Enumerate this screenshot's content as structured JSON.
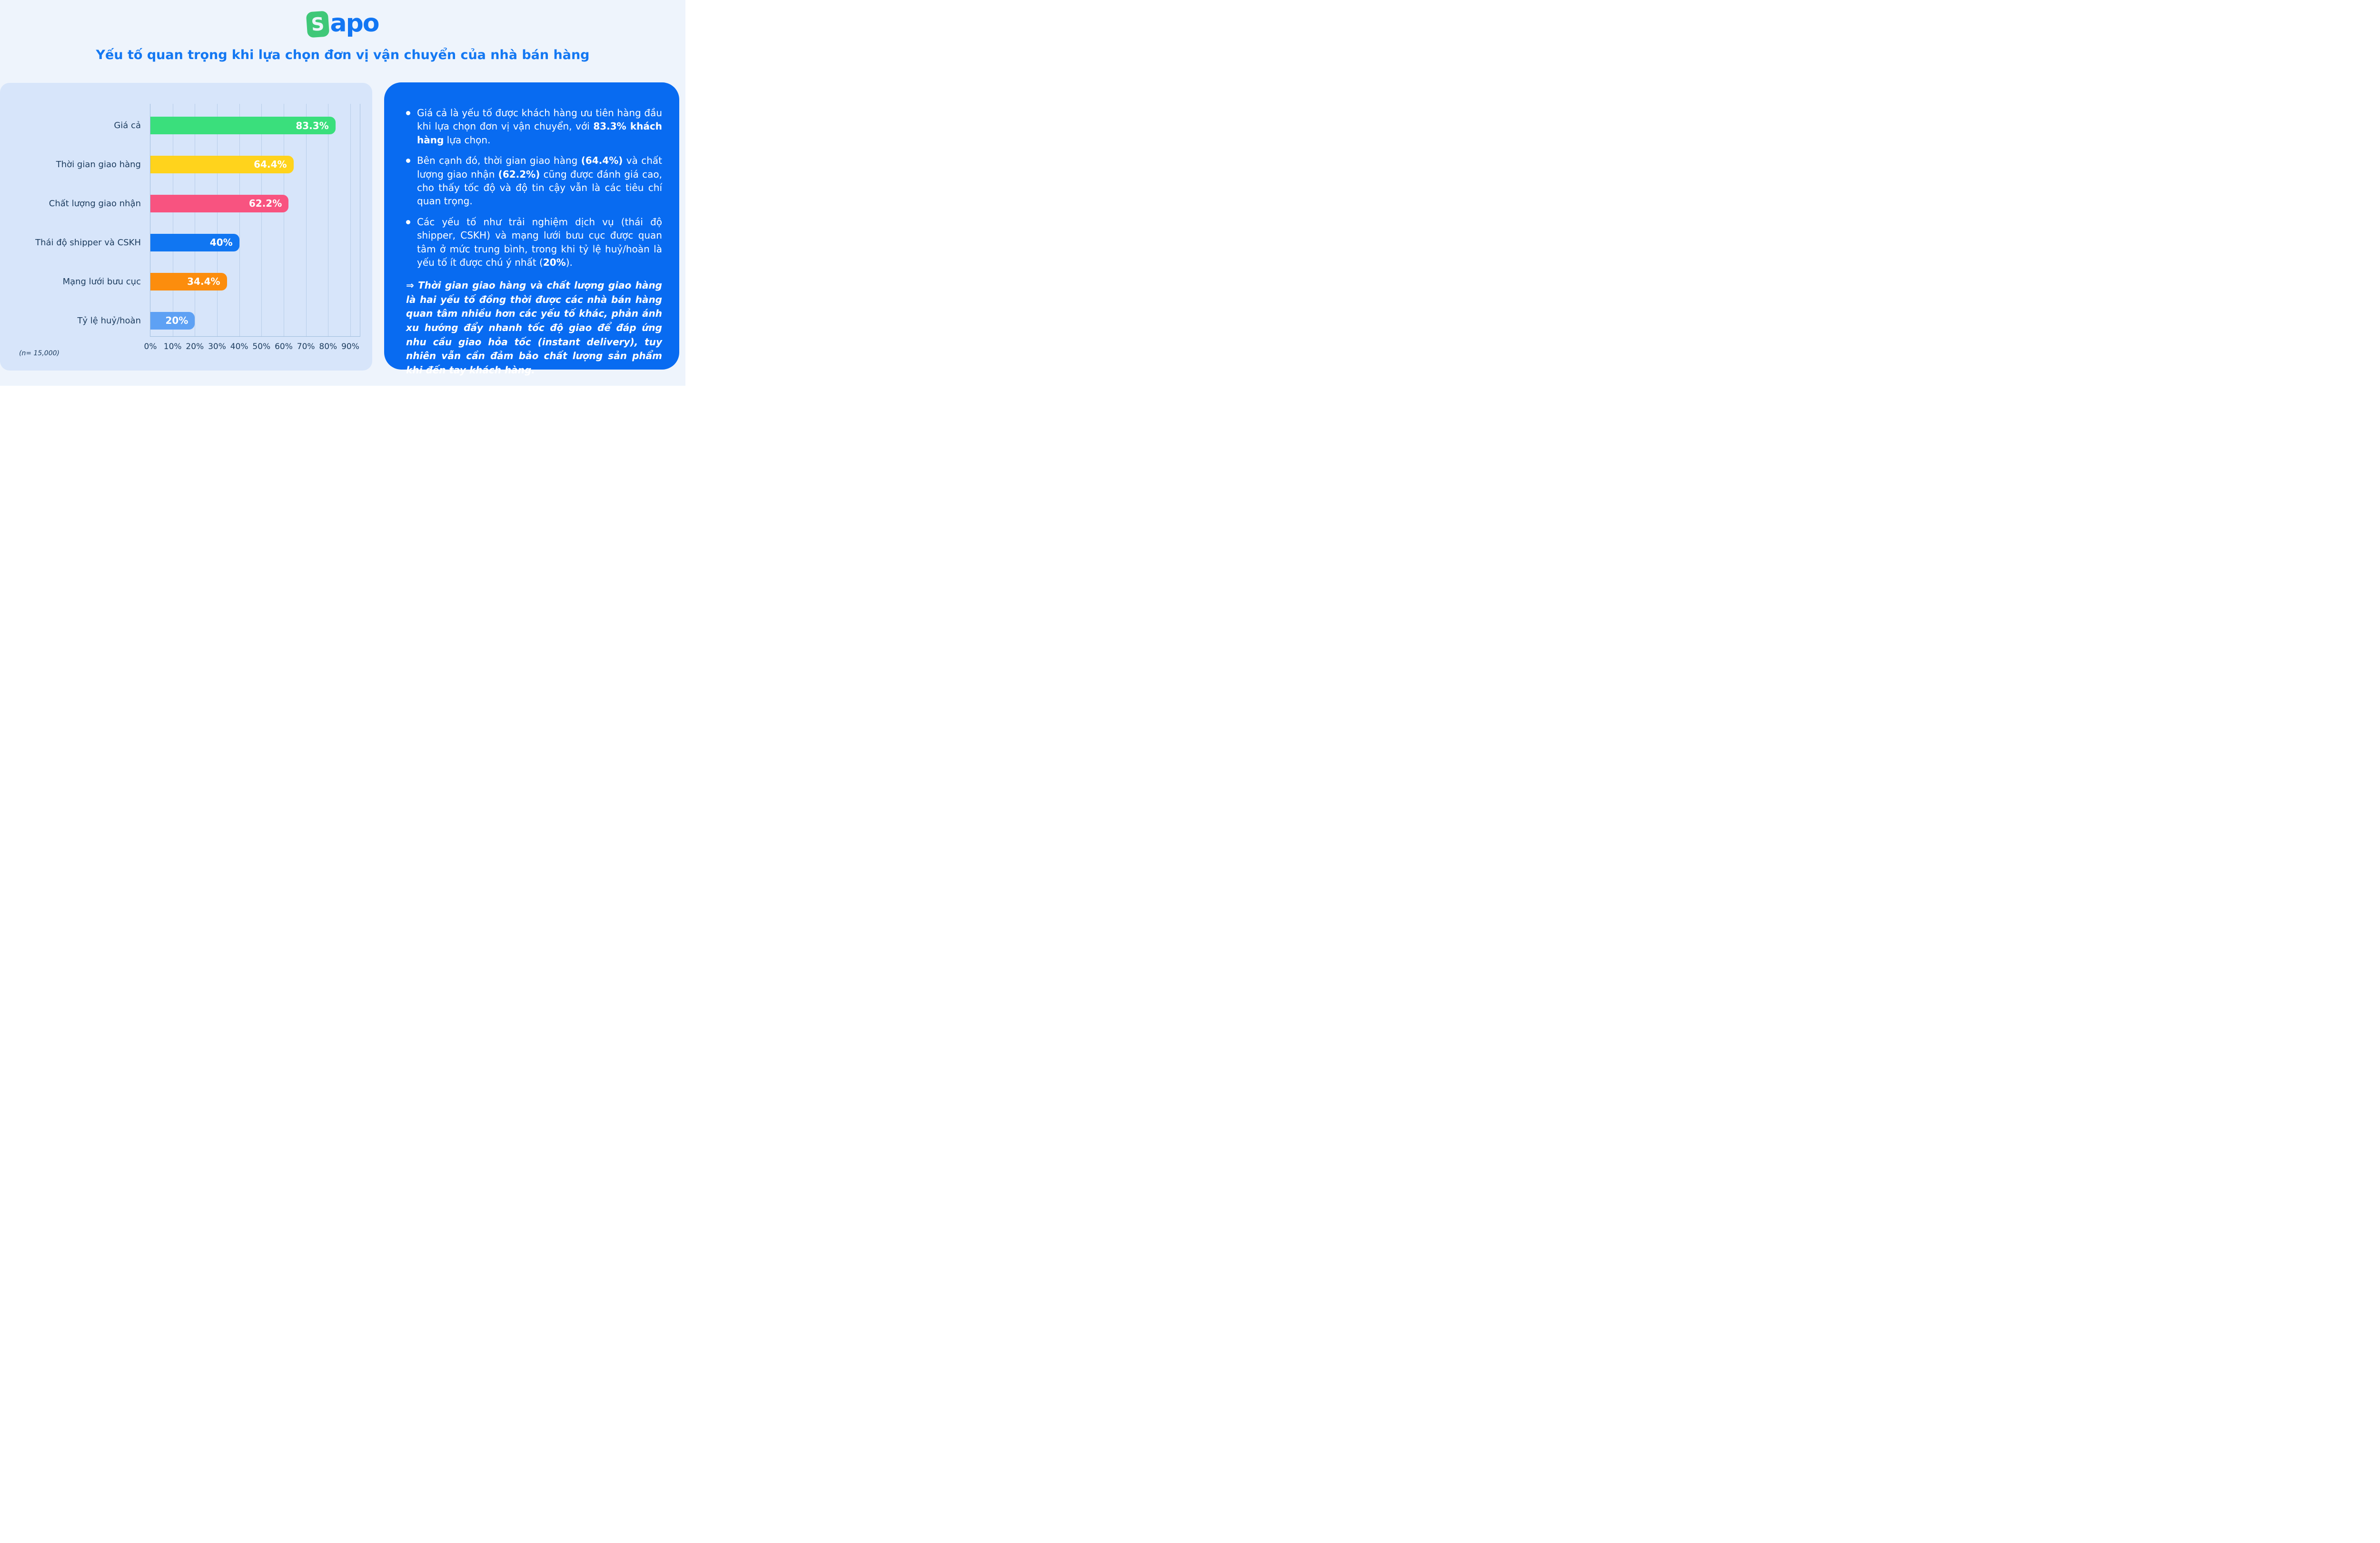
{
  "logo": {
    "mark_letter": "S",
    "text_rest": "apo",
    "brand": "Sapo"
  },
  "title": "Yếu tố quan trọng khi lựa chọn đơn vị vận chuyển của nhà bán hàng",
  "chart_data": {
    "type": "bar",
    "orientation": "horizontal",
    "categories": [
      "Giá cả",
      "Thời gian giao hàng",
      "Chất lượng giao nhận",
      "Thái độ shipper và CSKH",
      "Mạng lưới bưu cục",
      "Tỷ lệ huỷ/hoàn"
    ],
    "values": [
      83.3,
      64.4,
      62.2,
      40,
      34.4,
      20
    ],
    "value_labels": [
      "83.3%",
      "64.4%",
      "62.2%",
      "40%",
      "34.4%",
      "20%"
    ],
    "bar_colors": [
      "#3ADF7C",
      "#FFD31C",
      "#F85380",
      "#1076F2",
      "#FC8D0D",
      "#5EA1F4"
    ],
    "x_ticks": [
      "0%",
      "10%",
      "20%",
      "30%",
      "40%",
      "50%",
      "60%",
      "70%",
      "80%",
      "90%"
    ],
    "xlim": [
      0,
      90
    ],
    "grid": true,
    "value_label_position": "inside-end",
    "note": "(n= 15,000)",
    "title": "Yếu tố quan trọng khi lựa chọn đơn vị vận chuyển của nhà bán hàng"
  },
  "insights": {
    "bullets": [
      {
        "segments": [
          {
            "text": "Giá cả là yếu tố được khách hàng ưu tiên hàng đầu khi lựa chọn đơn vị vận chuyển, với ",
            "bold": false
          },
          {
            "text": "83.3% khách hàng",
            "bold": true
          },
          {
            "text": " lựa chọn.",
            "bold": false
          }
        ]
      },
      {
        "segments": [
          {
            "text": "Bên cạnh đó, thời gian giao hàng ",
            "bold": false
          },
          {
            "text": "(64.4%)",
            "bold": true
          },
          {
            "text": " và chất lượng giao nhận ",
            "bold": false
          },
          {
            "text": "(62.2%)",
            "bold": true
          },
          {
            "text": " cũng được đánh giá cao, cho thấy tốc độ và độ tin cậy vẫn là các tiêu chí quan trọng.",
            "bold": false
          }
        ]
      },
      {
        "segments": [
          {
            "text": "Các yếu tố như trải nghiệm dịch vụ (thái độ shipper, CSKH) và mạng lưới bưu cục được quan tâm ở mức trung bình, trong khi tỷ lệ huỷ/hoàn là yếu tố ít được chú ý nhất (",
            "bold": false
          },
          {
            "text": "20%",
            "bold": true
          },
          {
            "text": ").",
            "bold": false
          }
        ]
      }
    ],
    "conclusion": "⇒ Thời gian giao hàng và chất lượng giao hàng là hai yếu tố đồng thời được các nhà bán hàng quan tâm nhiều hơn các yếu tố khác, phản ánh xu hướng đẩy nhanh tốc độ giao để đáp ứng nhu cầu giao hỏa tốc (instant delivery), tuy nhiên vẫn cần đảm bảo chất lượng sản phẩm khi đến tay khách hàng."
  },
  "colors": {
    "page_background": "#EEF4FC",
    "chart_card_background": "#D7E5FA",
    "insights_panel_background": "#086BF1",
    "title_blue": "#1478F2",
    "logo_green": "#3FC878",
    "logo_blue": "#1276F3",
    "axis_text": "#1C3C5E",
    "gridline": "#B7CDE9",
    "insights_text": "#FFFFFF"
  }
}
